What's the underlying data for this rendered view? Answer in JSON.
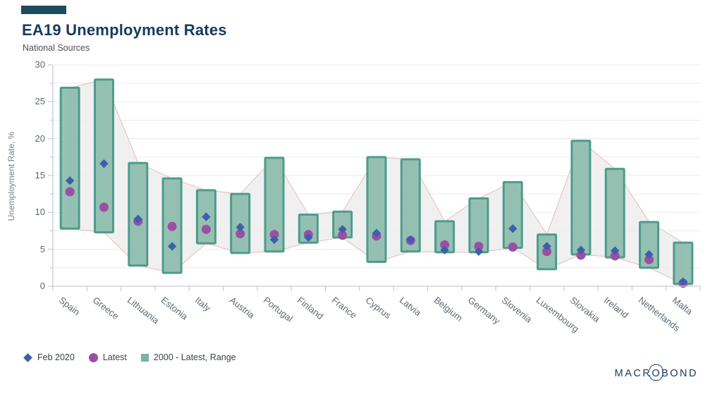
{
  "header": {
    "title": "EA19 Unemployment Rates",
    "subtitle": "National Sources"
  },
  "chart_data": {
    "type": "bar",
    "subtype": "range-bars-with-point-markers",
    "title": "EA19 Unemployment Rates",
    "xlabel": "",
    "ylabel": "Unemployment Rate, %",
    "ylim": [
      0,
      30
    ],
    "yticks": [
      0,
      5,
      10,
      15,
      20,
      25,
      30
    ],
    "minor_grid_step": 2.5,
    "grid": "on",
    "legend_position": "bottom-left",
    "categories": [
      "Spain",
      "Greece",
      "Lithuania",
      "Estonia",
      "Italy",
      "Austria",
      "Portugal",
      "Finland",
      "France",
      "Cyprus",
      "Latvia",
      "Belgium",
      "Germany",
      "Slovenia",
      "Luxembourg",
      "Slovakia",
      "Ireland",
      "Netherlands",
      "Malta"
    ],
    "series": [
      {
        "name": "Feb 2020",
        "marker": "diamond",
        "color": "#3c60aa",
        "values": [
          14.3,
          16.6,
          9.1,
          5.4,
          9.4,
          8.0,
          6.3,
          6.6,
          7.7,
          7.2,
          6.3,
          4.9,
          4.7,
          7.8,
          5.4,
          4.9,
          4.8,
          4.3,
          0.6
        ]
      },
      {
        "name": "Latest",
        "marker": "circle",
        "color": "#9b4fa4",
        "values": [
          12.8,
          10.7,
          8.8,
          8.1,
          7.7,
          7.1,
          7.0,
          7.0,
          6.9,
          6.8,
          6.2,
          5.6,
          5.4,
          5.3,
          4.7,
          4.2,
          4.1,
          3.6,
          0.4
        ]
      },
      {
        "name": "2000 - Latest, Range",
        "marker": "range-bar",
        "fill": "#8cbcad",
        "stroke": "#4e9c8a",
        "low": [
          7.8,
          7.3,
          2.8,
          1.8,
          5.8,
          4.5,
          4.7,
          5.9,
          6.6,
          3.3,
          4.7,
          4.6,
          4.6,
          5.2,
          2.3,
          4.3,
          3.9,
          2.5,
          0.3
        ],
        "high": [
          26.9,
          28.0,
          16.7,
          14.6,
          13.0,
          12.5,
          17.4,
          9.7,
          10.1,
          17.5,
          17.2,
          8.8,
          11.9,
          14.1,
          7.0,
          19.7,
          15.9,
          8.7,
          5.9
        ]
      }
    ],
    "band": {
      "fill": "#ededee",
      "fill_opacity": 0.82,
      "stroke": "#e8bcb7"
    }
  },
  "legend": {
    "items": [
      {
        "label": "Feb 2020"
      },
      {
        "label": "Latest"
      },
      {
        "label": "2000 - Latest, Range"
      }
    ]
  },
  "footer": {
    "logo_left": "MACR",
    "logo_o": "O",
    "logo_right": "BOND"
  }
}
